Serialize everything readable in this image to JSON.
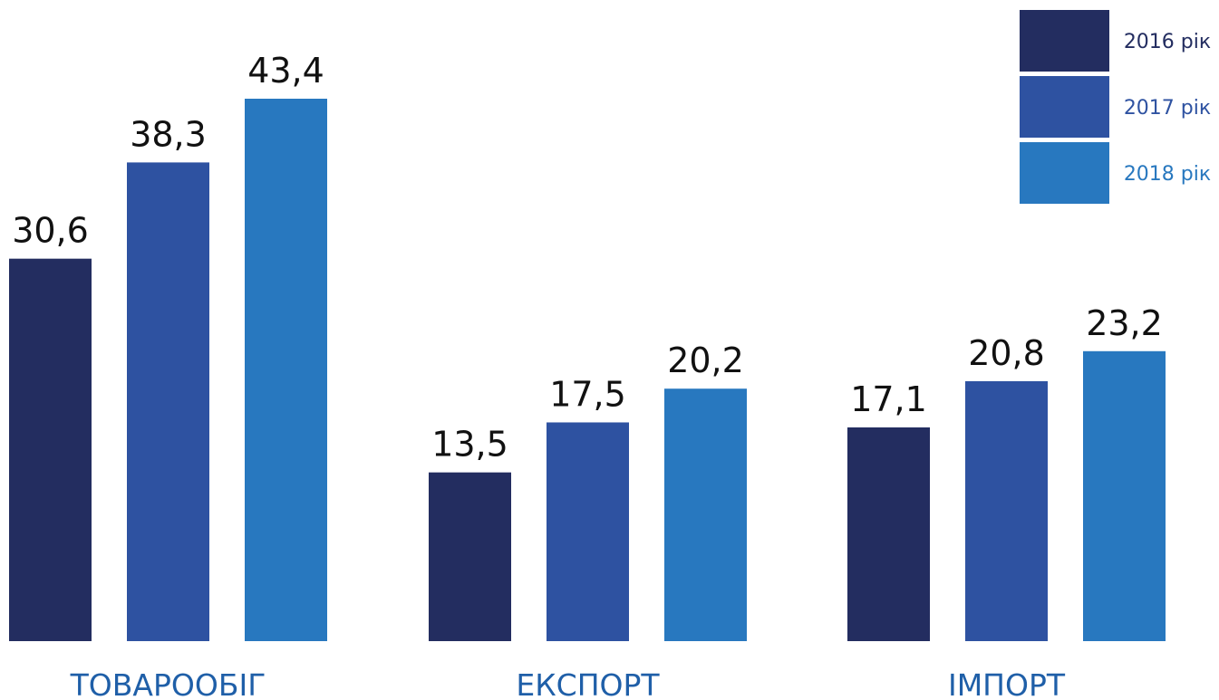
{
  "chart_data": {
    "type": "bar",
    "categories": [
      "ТОВАРООБІГ",
      "ЕКСПОРТ",
      "ІМПОРТ"
    ],
    "series": [
      {
        "name": "2016 рік",
        "values": [
          30.6,
          13.5,
          17.1
        ],
        "color": "#232d60",
        "labels": [
          "30,6",
          "13,5",
          "17,1"
        ]
      },
      {
        "name": "2017 рік",
        "values": [
          38.3,
          17.5,
          20.8
        ],
        "color": "#2e52a1",
        "labels": [
          "38,3",
          "17,5",
          "20,8"
        ]
      },
      {
        "name": "2018 рік",
        "values": [
          43.4,
          20.2,
          23.2
        ],
        "color": "#2878bf",
        "labels": [
          "43,4",
          "20,2",
          "23,2"
        ]
      }
    ],
    "legend_position": "top-right",
    "grid": false,
    "ylim": [
      0,
      43.4
    ],
    "category_label_color": "#1f5fa8",
    "value_label_color": "#111111"
  }
}
